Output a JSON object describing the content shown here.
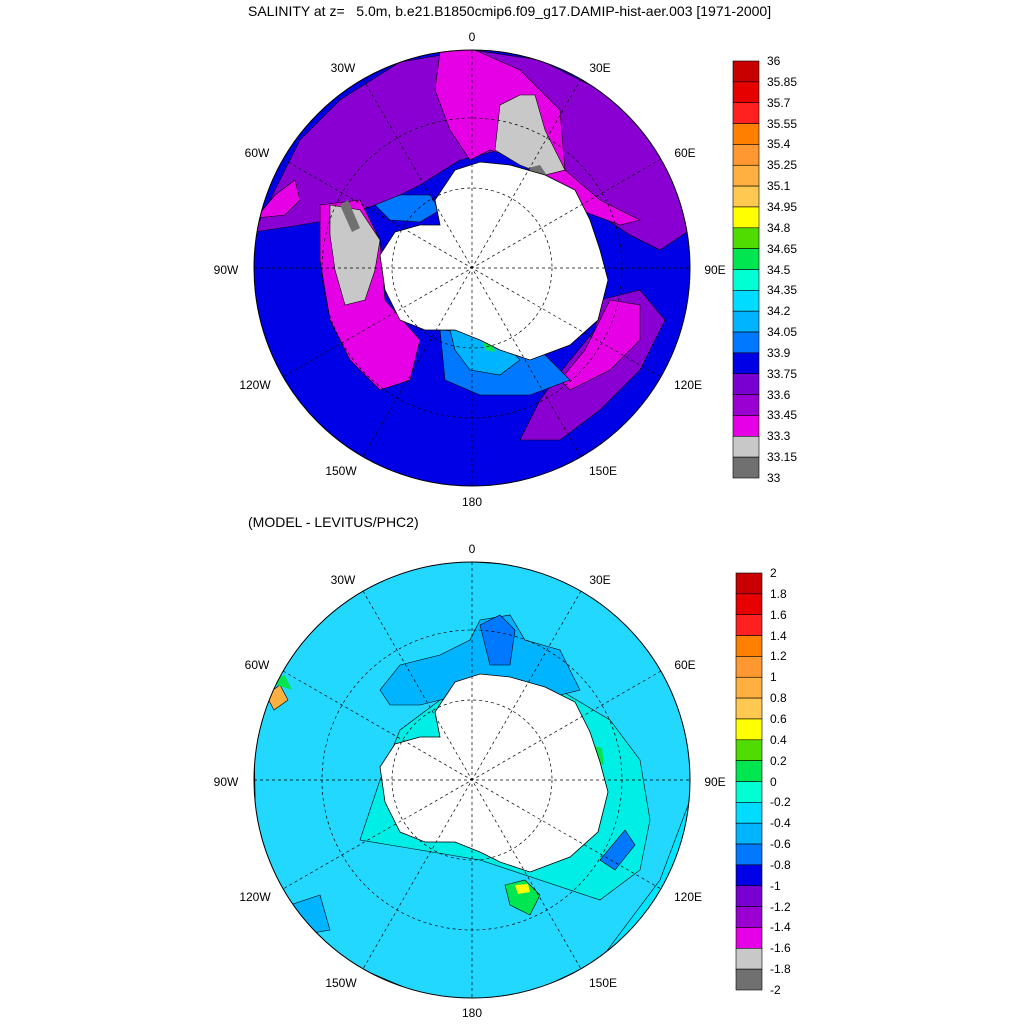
{
  "titles": {
    "top": "SALINITY at z=   5.0m, b.e21.B1850cmip6.f09_g17.DAMIP-hist-aer.003 [1971-2000]",
    "bottom": "(MODEL - LEVITUS/PHC2)"
  },
  "lon_labels": [
    "0",
    "30E",
    "60E",
    "90E",
    "120E",
    "150E",
    "180",
    "150W",
    "120W",
    "90W",
    "60W",
    "30W"
  ],
  "colorbar_top": {
    "ticks": [
      "36",
      "35.85",
      "35.7",
      "35.55",
      "35.4",
      "35.25",
      "35.1",
      "34.95",
      "34.8",
      "34.65",
      "34.5",
      "34.35",
      "34.2",
      "34.05",
      "33.9",
      "33.75",
      "33.6",
      "33.45",
      "33.3",
      "33.15",
      "33"
    ],
    "colors": [
      "#c80000",
      "#e60000",
      "#ff2020",
      "#ff8000",
      "#ff9830",
      "#ffb040",
      "#ffc850",
      "#ffff00",
      "#50dc00",
      "#00e650",
      "#00ffd2",
      "#00dcff",
      "#00b4ff",
      "#0078ff",
      "#0000e6",
      "#7a00d2",
      "#9a00d2",
      "#e600e6",
      "#c8c8c8",
      "#707070"
    ]
  },
  "colorbar_bottom": {
    "ticks": [
      "2",
      "1.8",
      "1.6",
      "1.4",
      "1.2",
      "1",
      "0.8",
      "0.6",
      "0.4",
      "0.2",
      "0",
      "-0.2",
      "-0.4",
      "-0.6",
      "-0.8",
      "-1",
      "-1.2",
      "-1.4",
      "-1.6",
      "-1.8",
      "-2"
    ],
    "colors": [
      "#c80000",
      "#e60000",
      "#ff2020",
      "#ff8000",
      "#ff9830",
      "#ffb040",
      "#ffc850",
      "#ffff00",
      "#50dc00",
      "#00e650",
      "#00ffd2",
      "#00dcff",
      "#00b4ff",
      "#0078ff",
      "#0000e6",
      "#7a00d2",
      "#9a00d2",
      "#e600e6",
      "#c8c8c8",
      "#707070"
    ]
  },
  "colors": {
    "ocean_top": "#0000e6",
    "ocean_bottom": "#00e6ff",
    "land": "#ffffff"
  }
}
